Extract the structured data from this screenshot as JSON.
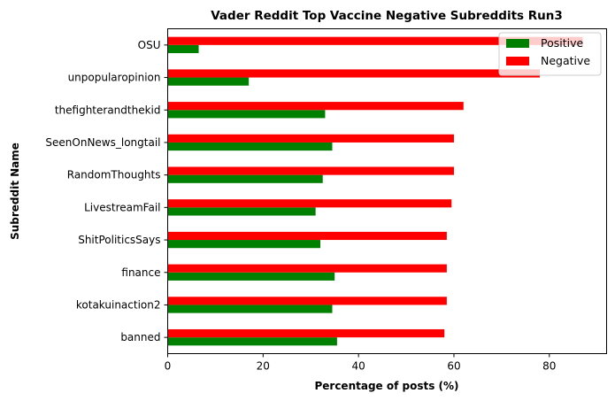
{
  "chart_data": {
    "type": "bar",
    "orientation": "horizontal",
    "title": "Vader Reddit Top Vaccine Negative Subreddits Run3",
    "xlabel": "Percentage of posts (%)",
    "ylabel": "Subreddit Name",
    "xlim": [
      0,
      92
    ],
    "xticks": [
      0,
      20,
      40,
      60,
      80
    ],
    "categories": [
      "OSU",
      "unpopularopinion",
      "thefighterandthekid",
      "SeenOnNews_longtail",
      "RandomThoughts",
      "LivestreamFail",
      "ShitPoliticsSays",
      "finance",
      "kotakuinaction2",
      "banned"
    ],
    "series": [
      {
        "name": "Positive",
        "color": "#008000",
        "values": [
          6.5,
          17,
          33,
          34.5,
          32.5,
          31,
          32,
          35,
          34.5,
          35.5
        ]
      },
      {
        "name": "Negative",
        "color": "#ff0000",
        "values": [
          87,
          78,
          62,
          60,
          60,
          59.5,
          58.5,
          58.5,
          58.5,
          58
        ]
      }
    ],
    "grid": false,
    "legend_position": "top-right"
  }
}
